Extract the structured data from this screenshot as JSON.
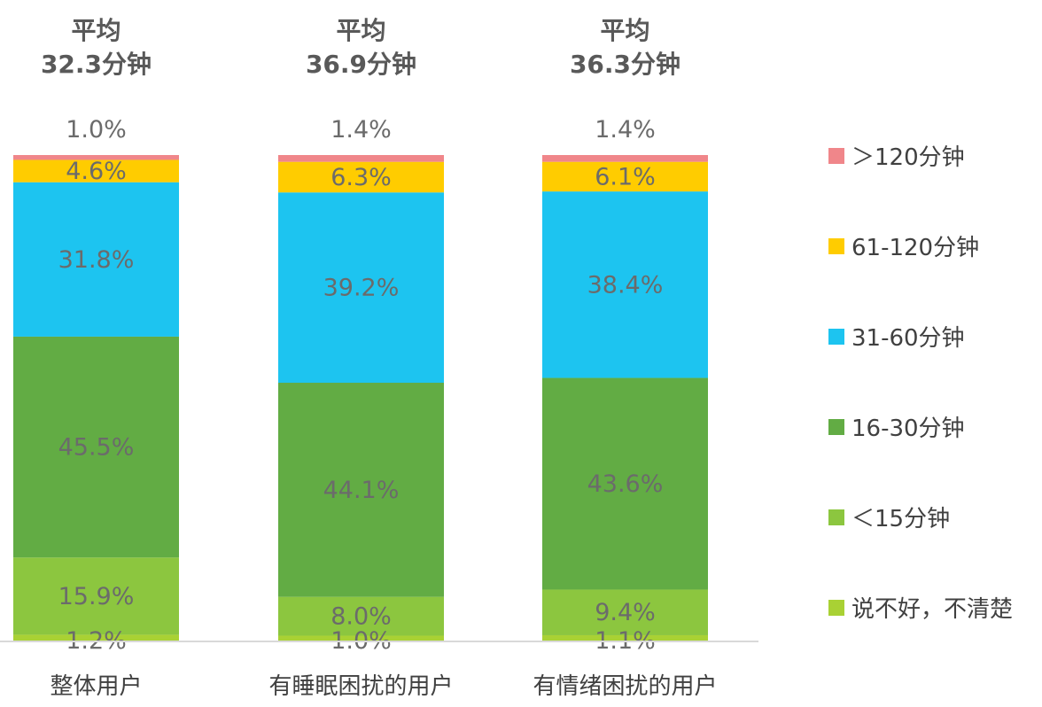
{
  "chart_data": {
    "type": "bar",
    "stacked": true,
    "percent_stacked": true,
    "categories": [
      "整体用户",
      "有睡眠困扰的用户",
      "有情绪困扰的用户"
    ],
    "averages": [
      {
        "line1": "平均",
        "line2": "32.3分钟"
      },
      {
        "line1": "平均",
        "line2": "36.9分钟"
      },
      {
        "line1": "平均",
        "line2": "36.3分钟"
      }
    ],
    "series": [
      {
        "name": "说不好，不清楚",
        "color": "#A9D134",
        "values": [
          1.2,
          1.0,
          1.1
        ],
        "labels": [
          "1.2%",
          "1.0%",
          "1.1%"
        ]
      },
      {
        "name": "＜15分钟",
        "color": "#8CC63F",
        "values": [
          15.9,
          8.0,
          9.4
        ],
        "labels": [
          "15.9%",
          "8.0%",
          "9.4%"
        ]
      },
      {
        "name": "16-30分钟",
        "color": "#62AC44",
        "values": [
          45.5,
          44.1,
          43.6
        ],
        "labels": [
          "45.5%",
          "44.1%",
          "43.6%"
        ]
      },
      {
        "name": "31-60分钟",
        "color": "#1DC4F0",
        "values": [
          31.8,
          39.2,
          38.4
        ],
        "labels": [
          "31.8%",
          "39.2%",
          "38.4%"
        ]
      },
      {
        "name": "61-120分钟",
        "color": "#FFCC00",
        "values": [
          4.6,
          6.3,
          6.1
        ],
        "labels": [
          "4.6%",
          "6.3%",
          "6.1%"
        ]
      },
      {
        "name": "＞120分钟",
        "color": "#F0868A",
        "values": [
          1.0,
          1.4,
          1.4
        ],
        "labels": [
          "1.0%",
          "1.4%",
          "1.4%"
        ]
      }
    ],
    "legend_position": "right",
    "grid": false,
    "ylim": [
      0,
      100
    ]
  }
}
